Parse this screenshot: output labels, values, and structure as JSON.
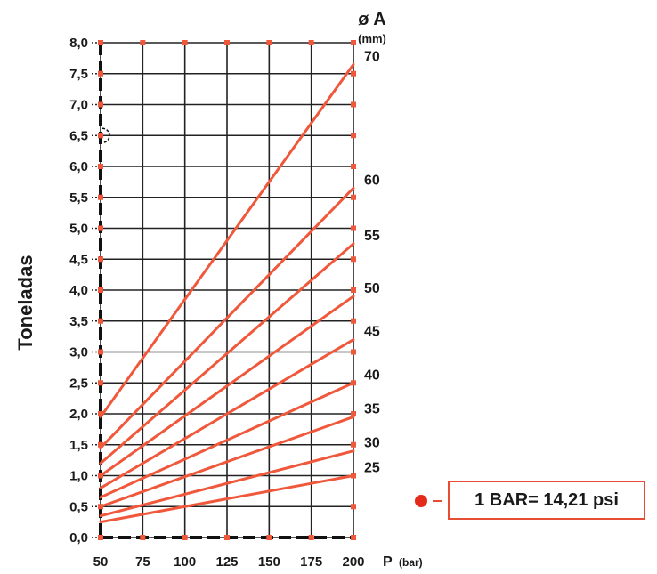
{
  "chart_data": {
    "type": "line",
    "ylabel": "Toneladas",
    "xlabel": "P",
    "xunit": "(bar)",
    "series_header": "ø A",
    "series_unit": "(mm)",
    "x_ticks": [
      "50",
      "75",
      "100",
      "125",
      "150",
      "175",
      "200"
    ],
    "y_ticks": [
      "0,0",
      "0,5",
      "1,0",
      "1,5",
      "2,0",
      "2,5",
      "3,0",
      "3,5",
      "4,0",
      "4,5",
      "5,0",
      "5,5",
      "6,0",
      "6,5",
      "7,0",
      "7,5",
      "8,0"
    ],
    "xlim": [
      50,
      200
    ],
    "ylim": [
      0,
      8
    ],
    "grid": true,
    "line_color": "#f0583c",
    "series": [
      {
        "name": "70",
        "x": [
          50,
          200
        ],
        "values": [
          1.95,
          7.65
        ]
      },
      {
        "name": "60",
        "x": [
          50,
          200
        ],
        "values": [
          1.45,
          5.65
        ]
      },
      {
        "name": "55",
        "x": [
          50,
          200
        ],
        "values": [
          1.2,
          4.75
        ]
      },
      {
        "name": "50",
        "x": [
          50,
          200
        ],
        "values": [
          1.0,
          3.9
        ]
      },
      {
        "name": "45",
        "x": [
          50,
          200
        ],
        "values": [
          0.8,
          3.2
        ]
      },
      {
        "name": "40",
        "x": [
          50,
          200
        ],
        "values": [
          0.65,
          2.5
        ]
      },
      {
        "name": "35",
        "x": [
          50,
          200
        ],
        "values": [
          0.5,
          1.95
        ]
      },
      {
        "name": "30",
        "x": [
          50,
          200
        ],
        "values": [
          0.35,
          1.4
        ]
      },
      {
        "name": "25",
        "x": [
          50,
          200
        ],
        "values": [
          0.25,
          1.0
        ]
      }
    ]
  },
  "conversion": {
    "label": "1 BAR= 14,21 psi",
    "accent_color": "#e74c35",
    "dot_color": "#e42a1a"
  }
}
